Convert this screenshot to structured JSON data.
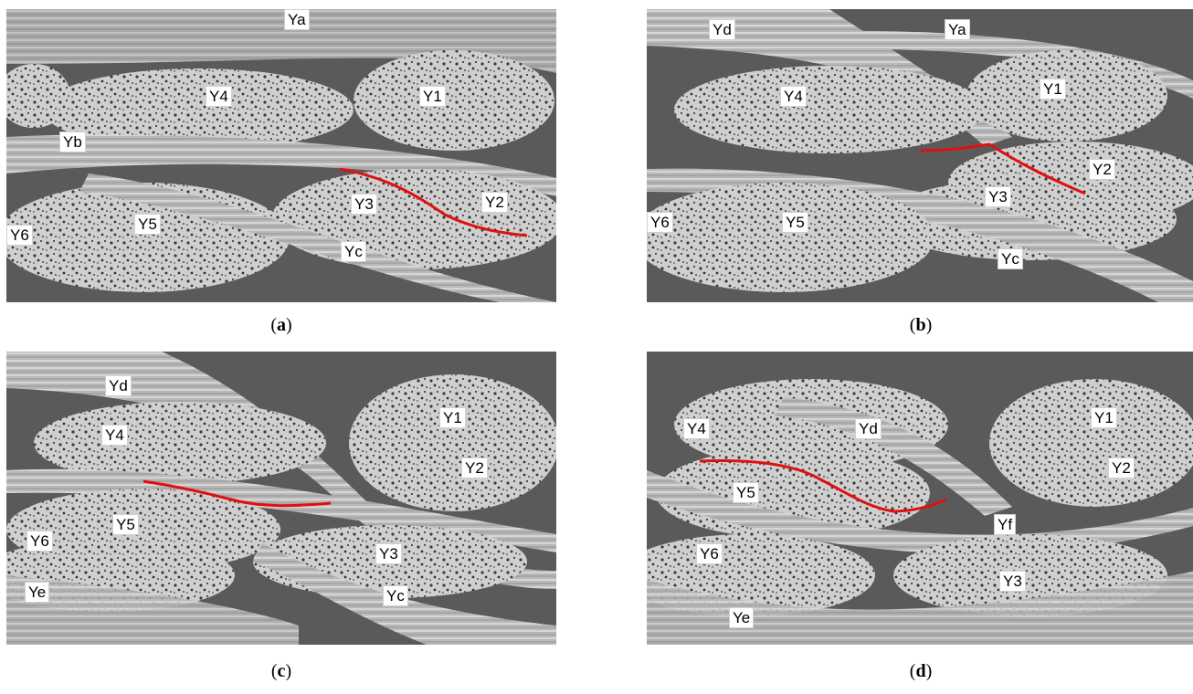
{
  "colors": {
    "trace": "#e01010",
    "yarn": "#d8d8d8",
    "background": "#5a5a5a"
  },
  "panels": [
    {
      "id": "a",
      "caption_letter": "a",
      "labels": [
        "Ya",
        "Y4",
        "Y1",
        "Yb",
        "Y3",
        "Y2",
        "Y6",
        "Y5",
        "Yc"
      ]
    },
    {
      "id": "b",
      "caption_letter": "b",
      "labels": [
        "Yd",
        "Ya",
        "Y4",
        "Y1",
        "Y2",
        "Y3",
        "Y6",
        "Y5",
        "Yc"
      ]
    },
    {
      "id": "c",
      "caption_letter": "c",
      "labels": [
        "Yd",
        "Y1",
        "Y4",
        "Y2",
        "Y5",
        "Y6",
        "Y3",
        "Ye",
        "Yc"
      ]
    },
    {
      "id": "d",
      "caption_letter": "d",
      "labels": [
        "Y4",
        "Yd",
        "Y1",
        "Y5",
        "Y2",
        "Yf",
        "Y6",
        "Y3",
        "Ye"
      ]
    }
  ]
}
